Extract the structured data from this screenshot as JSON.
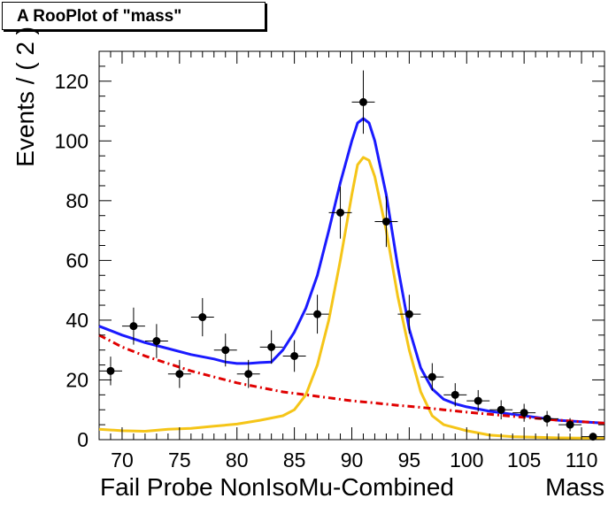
{
  "chart_data": {
    "type": "scatter",
    "title": "A RooPlot of \"mass\"",
    "xlabel": "Fail Probe NonIsoMu-Combined",
    "xlabel_right": "Mass",
    "ylabel": "Events / ( 2 )",
    "xlim": [
      68,
      112
    ],
    "ylim": [
      0,
      130
    ],
    "x_ticks": [
      70,
      75,
      80,
      85,
      90,
      95,
      100,
      105,
      110
    ],
    "y_ticks": [
      0,
      20,
      40,
      60,
      80,
      100,
      120
    ],
    "grid": false,
    "points": {
      "x": [
        69,
        71,
        73,
        75,
        77,
        79,
        81,
        83,
        85,
        87,
        89,
        91,
        93,
        95,
        97,
        99,
        101,
        103,
        105,
        107,
        109,
        111
      ],
      "y": [
        23,
        38,
        33,
        22,
        41,
        30,
        22,
        31,
        28,
        42,
        76,
        113,
        73,
        42,
        21,
        15,
        13,
        10,
        9,
        7,
        5,
        1
      ],
      "err": [
        4.8,
        6.2,
        5.7,
        4.7,
        6.4,
        5.5,
        4.7,
        5.6,
        5.3,
        6.5,
        8.7,
        10.6,
        8.5,
        6.5,
        4.6,
        3.9,
        3.6,
        3.2,
        3.0,
        2.6,
        2.2,
        1.0
      ],
      "xerr": 1
    },
    "series": [
      {
        "type": "line",
        "color": "#1a1aff",
        "style": "solid",
        "x": [
          68,
          70,
          72,
          74,
          76,
          78,
          79,
          80,
          81,
          82,
          83,
          84,
          85,
          86,
          87,
          88,
          89,
          90,
          90.5,
          91,
          91.5,
          92,
          93,
          94,
          95,
          96,
          97,
          98,
          99,
          100,
          102,
          104,
          106,
          108,
          110,
          112
        ],
        "y": [
          38,
          35,
          32.5,
          30.5,
          28.5,
          27,
          26,
          25.5,
          25.5,
          25.8,
          26,
          30,
          36,
          44,
          55,
          70,
          86,
          100,
          106,
          107.5,
          106,
          100,
          82,
          58,
          37,
          24,
          17,
          13.5,
          12,
          11,
          9.5,
          8.5,
          7.5,
          6.5,
          6,
          5.5
        ]
      },
      {
        "type": "line",
        "color": "#f5c518",
        "style": "solid",
        "x": [
          68,
          70,
          72,
          74,
          76,
          78,
          80,
          82,
          84,
          85,
          86,
          87,
          88,
          89,
          90,
          90.5,
          91,
          91.5,
          92,
          93,
          94,
          95,
          96,
          97,
          98,
          100,
          102,
          104,
          106,
          108,
          110,
          112
        ],
        "y": [
          3.5,
          3,
          2.8,
          3.5,
          3.8,
          4.5,
          5.2,
          6.5,
          8,
          10,
          15,
          25,
          40,
          60,
          82,
          92,
          94.5,
          93.5,
          88,
          70,
          48,
          30,
          16,
          8,
          5,
          3,
          1.5,
          1,
          0.8,
          0.6,
          0.5,
          0.5
        ]
      },
      {
        "type": "line",
        "color": "#e00000",
        "style": "dashed",
        "x": [
          68,
          70,
          72,
          74,
          76,
          78,
          80,
          82,
          84,
          86,
          88,
          90,
          92,
          94,
          96,
          98,
          100,
          102,
          104,
          106,
          108,
          110,
          112
        ],
        "y": [
          35,
          31,
          28,
          25.5,
          23,
          21,
          19,
          17.5,
          16,
          15,
          14,
          13,
          12.3,
          11.5,
          10.8,
          10,
          9.2,
          8.5,
          7.8,
          7.2,
          6.5,
          6,
          5.5
        ]
      }
    ]
  }
}
